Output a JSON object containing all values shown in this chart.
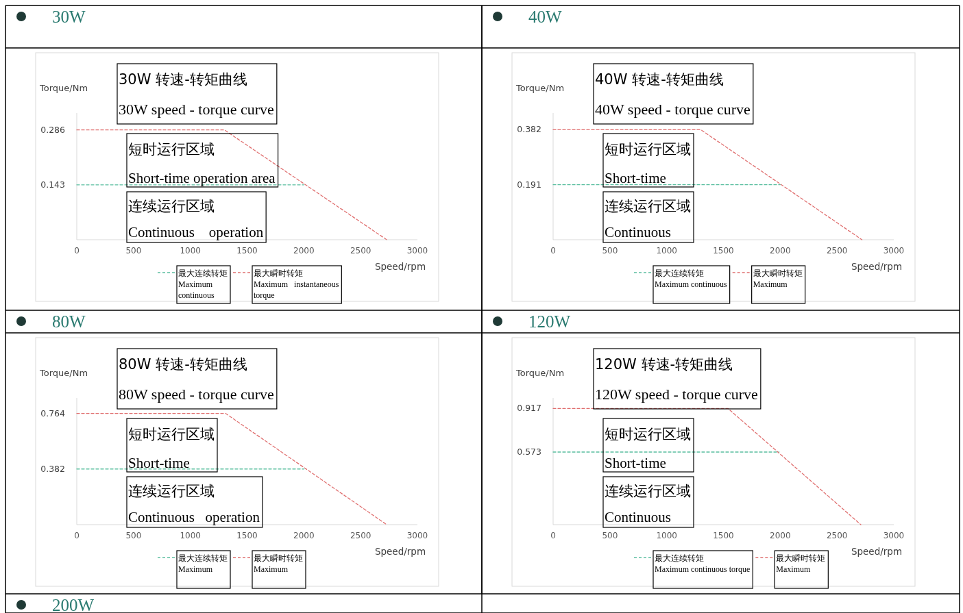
{
  "chart_data": [
    {
      "type": "line",
      "title": "30W",
      "subtitle": "30W 转速-转矩曲线",
      "annotations": [
        "30W speed - torque curve",
        "短时运行区域",
        "Short-time operation area",
        "连续运行区域",
        "Continuous    operation"
      ],
      "xlabel": "Speed/rpm",
      "ylabel": "Torque/Nm",
      "xlim": [
        0,
        3000
      ],
      "xticks": [
        0,
        500,
        1000,
        1500,
        2000,
        2500,
        3000
      ],
      "ylim": [
        0,
        0.33
      ],
      "yticks": [
        0.143,
        0.286
      ],
      "line_style": "dashed",
      "legend": "bottom",
      "series": [
        {
          "name": "最大连续转矩\nMaximum\ncontinuous",
          "color": "#5bbfa0",
          "x": [
            0,
            2000
          ],
          "values": [
            0.143,
            0.143
          ]
        },
        {
          "name": "最大瞬时转矩\nMaximum   instantaneous\ntorque",
          "color": "#e07070",
          "x": [
            0,
            1300,
            2730
          ],
          "values": [
            0.286,
            0.286,
            0
          ]
        }
      ]
    },
    {
      "type": "line",
      "title": "40W",
      "subtitle": "40W 转速-转矩曲线",
      "annotations": [
        "40W speed - torque curve",
        "短时运行区域",
        "Short-time",
        "连续运行区域",
        "Continuous"
      ],
      "xlabel": "Speed/rpm",
      "ylabel": "Torque/Nm",
      "xlim": [
        0,
        3000
      ],
      "xticks": [
        0,
        500,
        1000,
        1500,
        2000,
        2500,
        3000
      ],
      "ylim": [
        0,
        0.44
      ],
      "yticks": [
        0.191,
        0.382
      ],
      "line_style": "dashed",
      "legend": "bottom",
      "series": [
        {
          "name": "最大连续转矩\nMaximum continuous",
          "color": "#5bbfa0",
          "x": [
            0,
            2000
          ],
          "values": [
            0.191,
            0.191
          ]
        },
        {
          "name": "最大瞬时转矩\nMaximum",
          "color": "#e07070",
          "x": [
            0,
            1300,
            2720
          ],
          "values": [
            0.382,
            0.382,
            0
          ]
        }
      ]
    },
    {
      "type": "line",
      "title": "80W",
      "subtitle": "80W 转速-转矩曲线",
      "annotations": [
        "80W speed - torque curve",
        "短时运行区域",
        "Short-time",
        "连续运行区域",
        "Continuous   operation"
      ],
      "xlabel": "Speed/rpm",
      "ylabel": "Torque/Nm",
      "xlim": [
        0,
        3000
      ],
      "xticks": [
        0,
        500,
        1000,
        1500,
        2000,
        2500,
        3000
      ],
      "ylim": [
        0,
        0.87
      ],
      "yticks": [
        0.382,
        0.764
      ],
      "line_style": "dashed",
      "legend": "bottom",
      "series": [
        {
          "name": "最大连续转矩\nMaximum",
          "color": "#5bbfa0",
          "x": [
            0,
            2000
          ],
          "values": [
            0.382,
            0.382
          ]
        },
        {
          "name": "最大瞬时转矩\nMaximum",
          "color": "#e07070",
          "x": [
            0,
            1310,
            2730
          ],
          "values": [
            0.764,
            0.764,
            0
          ]
        }
      ]
    },
    {
      "type": "line",
      "title": "120W",
      "subtitle": "120W 转速-转矩曲线",
      "annotations": [
        "120W speed - torque curve",
        "短时运行区域",
        "Short-time",
        "连续运行区域",
        "Continuous"
      ],
      "xlabel": "Speed/rpm",
      "ylabel": "Torque/Nm",
      "xlim": [
        0,
        3000
      ],
      "xticks": [
        0,
        500,
        1000,
        1500,
        2000,
        2500,
        3000
      ],
      "ylim": [
        0,
        1.0
      ],
      "yticks": [
        0.573,
        0.917
      ],
      "line_style": "dashed",
      "legend": "bottom",
      "series": [
        {
          "name": "最大连续转矩\nMaximum continuous torque",
          "color": "#5bbfa0",
          "x": [
            0,
            1990
          ],
          "values": [
            0.573,
            0.573
          ]
        },
        {
          "name": "最大瞬时转矩\nMaximum",
          "color": "#e07070",
          "x": [
            0,
            1540,
            2710
          ],
          "values": [
            0.917,
            0.917,
            0
          ]
        }
      ]
    },
    {
      "type": "other",
      "title": "200W"
    }
  ]
}
